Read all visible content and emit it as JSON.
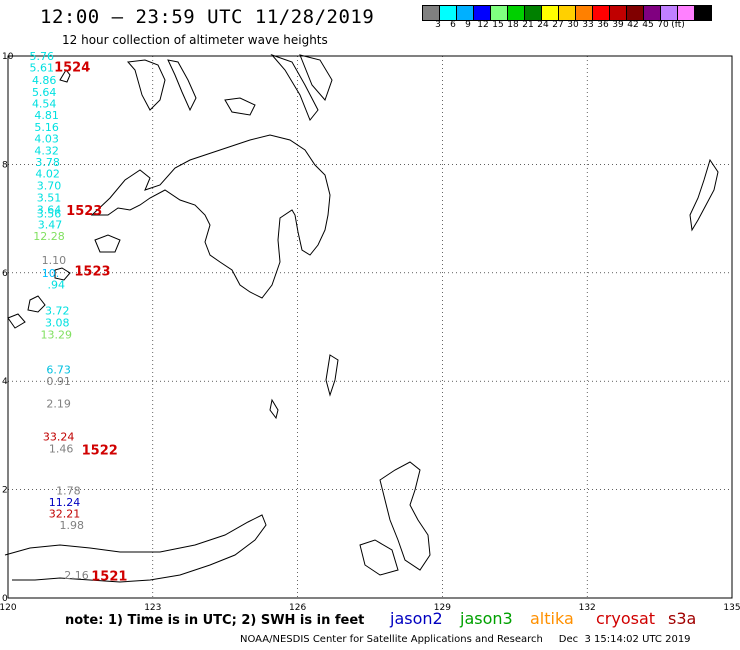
{
  "header": {
    "title": "12:00 — 23:59 UTC 11/28/2019",
    "subtitle": "12 hour collection of altimeter wave heights"
  },
  "colorbar": {
    "colors": [
      "#808080",
      "#00ffff",
      "#00b0ff",
      "#0000ff",
      "#80ff80",
      "#00d000",
      "#008000",
      "#ffff00",
      "#ffd000",
      "#ff8000",
      "#ff0000",
      "#c00000",
      "#800000",
      "#800080",
      "#c080ff",
      "#ff80ff",
      "#000000"
    ],
    "labels": [
      "3",
      "6",
      "9",
      "12",
      "15",
      "18",
      "21",
      "24",
      "27",
      "30",
      "33",
      "36",
      "39",
      "42",
      "45",
      "70",
      "(ft)"
    ]
  },
  "axes": {
    "x_ticks": [
      "120",
      "123",
      "126",
      "129",
      "132",
      "135"
    ],
    "y_ticks": [
      "0",
      "2",
      "4",
      "6",
      "8",
      "10"
    ]
  },
  "map": {
    "lon_range": [
      120,
      135
    ],
    "lat_range": [
      0,
      10
    ],
    "land_color": "#ffffff",
    "coast_color": "#000000",
    "grid": "dotted"
  },
  "observations": [
    {
      "value": "5.76",
      "lon": 120.7,
      "lat": 10.0,
      "color": "#00e0e0"
    },
    {
      "value": "5.61",
      "lon": 120.7,
      "lat": 9.79,
      "color": "#00e0e0"
    },
    {
      "value": "4.86",
      "lon": 120.75,
      "lat": 9.56,
      "color": "#00e0e0"
    },
    {
      "value": "5.64",
      "lon": 120.75,
      "lat": 9.34,
      "color": "#00e0e0"
    },
    {
      "value": "4.54",
      "lon": 120.75,
      "lat": 9.12,
      "color": "#00e0e0"
    },
    {
      "value": "4.81",
      "lon": 120.8,
      "lat": 8.91,
      "color": "#00e0e0"
    },
    {
      "value": "5.16",
      "lon": 120.8,
      "lat": 8.69,
      "color": "#00e0e0"
    },
    {
      "value": "4.03",
      "lon": 120.8,
      "lat": 8.48,
      "color": "#00e0e0"
    },
    {
      "value": "4.32",
      "lon": 120.8,
      "lat": 8.26,
      "color": "#00e0e0"
    },
    {
      "value": "3.78",
      "lon": 120.82,
      "lat": 8.04,
      "color": "#00e0e0"
    },
    {
      "value": "4.02",
      "lon": 120.82,
      "lat": 7.83,
      "color": "#00e0e0"
    },
    {
      "value": "3.70",
      "lon": 120.85,
      "lat": 7.61,
      "color": "#00e0e0"
    },
    {
      "value": "3.51",
      "lon": 120.85,
      "lat": 7.39,
      "color": "#00e0e0"
    },
    {
      "value": "3.64",
      "lon": 120.85,
      "lat": 7.17,
      "color": "#00e0e0"
    },
    {
      "value": "3.56",
      "lon": 120.85,
      "lat": 7.09,
      "color": "#00e0e0"
    },
    {
      "value": "3.47",
      "lon": 120.87,
      "lat": 6.89,
      "color": "#00e0e0"
    },
    {
      "value": "12.28",
      "lon": 120.85,
      "lat": 6.68,
      "color": "#80e060"
    },
    {
      "value": "1.10",
      "lon": 120.95,
      "lat": 6.24,
      "color": "#808080"
    },
    {
      "value": "10.",
      "lon": 120.88,
      "lat": 6.0,
      "color": "#00c0ff"
    },
    {
      "value": ".94",
      "lon": 121.0,
      "lat": 5.78,
      "color": "#00e0e0"
    },
    {
      "value": "3.72",
      "lon": 121.02,
      "lat": 5.3,
      "color": "#00e0e0"
    },
    {
      "value": "3.08",
      "lon": 121.02,
      "lat": 5.08,
      "color": "#00e0e0"
    },
    {
      "value": "13.29",
      "lon": 121.0,
      "lat": 4.86,
      "color": "#80e060"
    },
    {
      "value": "6.73",
      "lon": 121.05,
      "lat": 4.22,
      "color": "#00c0e0"
    },
    {
      "value": "0.91",
      "lon": 121.05,
      "lat": 4.0,
      "color": "#808080"
    },
    {
      "value": "2.19",
      "lon": 121.05,
      "lat": 3.59,
      "color": "#808080"
    },
    {
      "value": "33.24",
      "lon": 121.05,
      "lat": 2.98,
      "color": "#c00000"
    },
    {
      "value": "1.46",
      "lon": 121.1,
      "lat": 2.76,
      "color": "#808080"
    },
    {
      "value": "1.78",
      "lon": 121.25,
      "lat": 1.98,
      "color": "#808080"
    },
    {
      "value": "11.24",
      "lon": 121.17,
      "lat": 1.77,
      "color": "#0000c0"
    },
    {
      "value": "32.21",
      "lon": 121.17,
      "lat": 1.56,
      "color": "#c00000"
    },
    {
      "value": "1.98",
      "lon": 121.32,
      "lat": 1.35,
      "color": "#808080"
    },
    {
      "value": "2.16",
      "lon": 121.42,
      "lat": 0.42,
      "color": "#808080"
    }
  ],
  "track_ids": [
    {
      "label": "1524",
      "lon": 121.33,
      "lat": 9.79,
      "color": "#d00000"
    },
    {
      "label": "1523",
      "lon": 121.58,
      "lat": 7.14,
      "color": "#d00000"
    },
    {
      "label": "1523",
      "lon": 121.75,
      "lat": 6.02,
      "color": "#d00000"
    },
    {
      "label": "1522",
      "lon": 121.9,
      "lat": 2.72,
      "color": "#d00000"
    },
    {
      "label": "1521",
      "lon": 122.1,
      "lat": 0.4,
      "color": "#d00000"
    }
  ],
  "footer": {
    "note": "note:  1) Time is in UTC;  2) SWH is in feet",
    "legend": [
      {
        "name": "jason2",
        "color": "#0000c0"
      },
      {
        "name": "jason3",
        "color": "#00a000"
      },
      {
        "name": "altika",
        "color": "#ff9000"
      },
      {
        "name": "cryosat",
        "color": "#d00000"
      },
      {
        "name": "s3a",
        "color": "#a00000"
      }
    ],
    "credit": "NOAA/NESDIS Center for Satellite Applications and Research     Dec  3 15:14:02 UTC 2019"
  }
}
